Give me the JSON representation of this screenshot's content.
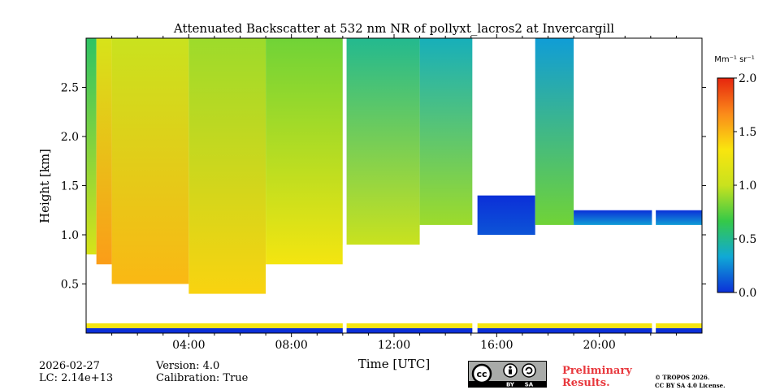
{
  "chart_data": {
    "type": "heatmap",
    "title": "Attenuated Backscatter at 532 nm NR of pollyxt_lacros2 at Invercargill",
    "xlabel": "Time [UTC]",
    "ylabel": "Height [km]",
    "xlim_hours": [
      0,
      24
    ],
    "ylim_km": [
      0.0,
      3.0
    ],
    "x_ticks": [
      {
        "value": 4,
        "label": "04:00"
      },
      {
        "value": 8,
        "label": "08:00"
      },
      {
        "value": 12,
        "label": "12:00"
      },
      {
        "value": 16,
        "label": "16:00"
      },
      {
        "value": 20,
        "label": "20:00"
      }
    ],
    "y_ticks": [
      {
        "value": 0.5,
        "label": "0.5"
      },
      {
        "value": 1.0,
        "label": "1.0"
      },
      {
        "value": 1.5,
        "label": "1.5"
      },
      {
        "value": 2.0,
        "label": "2.0"
      },
      {
        "value": 2.5,
        "label": "2.5"
      }
    ],
    "colorbar": {
      "unit_label": "Mm⁻¹ sr⁻¹",
      "range": [
        0.0,
        2.0
      ],
      "ticks": [
        {
          "value": 0.0,
          "label": "0.0"
        },
        {
          "value": 0.5,
          "label": "0.5"
        },
        {
          "value": 1.0,
          "label": "1.0"
        },
        {
          "value": 1.5,
          "label": "1.5"
        },
        {
          "value": 2.0,
          "label": "2.0"
        }
      ],
      "colors": [
        "#0b2fd8",
        "#10a9d6",
        "#35c948",
        "#c9e21e",
        "#f9e50e",
        "#fb8b1a",
        "#e6250e"
      ]
    },
    "regions": [
      {
        "t_start": 0.0,
        "t_end": 0.4,
        "h_bottom": 0.8,
        "h_top": 3.0,
        "value": 1.1
      },
      {
        "t_start": 0.4,
        "t_end": 1.0,
        "h_bottom": 0.7,
        "h_top": 3.0,
        "value": 1.6
      },
      {
        "t_start": 1.0,
        "t_end": 4.0,
        "h_bottom": 0.5,
        "h_top": 3.0,
        "value": 1.5
      },
      {
        "t_start": 4.0,
        "t_end": 7.0,
        "h_bottom": 0.4,
        "h_top": 3.0,
        "value": 1.4
      },
      {
        "t_start": 7.0,
        "t_end": 10.0,
        "h_bottom": 0.7,
        "h_top": 3.0,
        "value": 1.3
      },
      {
        "t_start": 10.0,
        "t_end": 13.0,
        "h_bottom": 0.9,
        "h_top": 3.0,
        "value": 1.0
      },
      {
        "t_start": 13.0,
        "t_end": 15.1,
        "h_bottom": 1.1,
        "h_top": 3.0,
        "value": 0.9
      },
      {
        "t_start": 15.2,
        "t_end": 17.5,
        "h_bottom": 1.0,
        "h_top": 1.4,
        "value": 0.1
      },
      {
        "t_start": 17.5,
        "t_end": 19.0,
        "h_bottom": 1.1,
        "h_top": 3.0,
        "value": 0.8
      },
      {
        "t_start": 19.0,
        "t_end": 24.0,
        "h_bottom": 1.1,
        "h_top": 1.25,
        "value": 0.3
      }
    ],
    "gaps_hours": [
      [
        10.0,
        10.15
      ],
      [
        15.05,
        15.25
      ],
      [
        22.05,
        22.2
      ]
    ]
  },
  "footer": {
    "date": "2026-02-27",
    "lc": "LC: 2.14e+13",
    "version": "Version: 4.0",
    "calibration": "Calibration: True",
    "preliminary_line1": "Preliminary",
    "preliminary_line2": "Results.",
    "copyright_line1": "© TROPOS 2026.",
    "copyright_line2": "CC BY SA 4.0 License.",
    "license_badge": {
      "by": "BY",
      "sa": "SA",
      "cc": "cc"
    }
  }
}
